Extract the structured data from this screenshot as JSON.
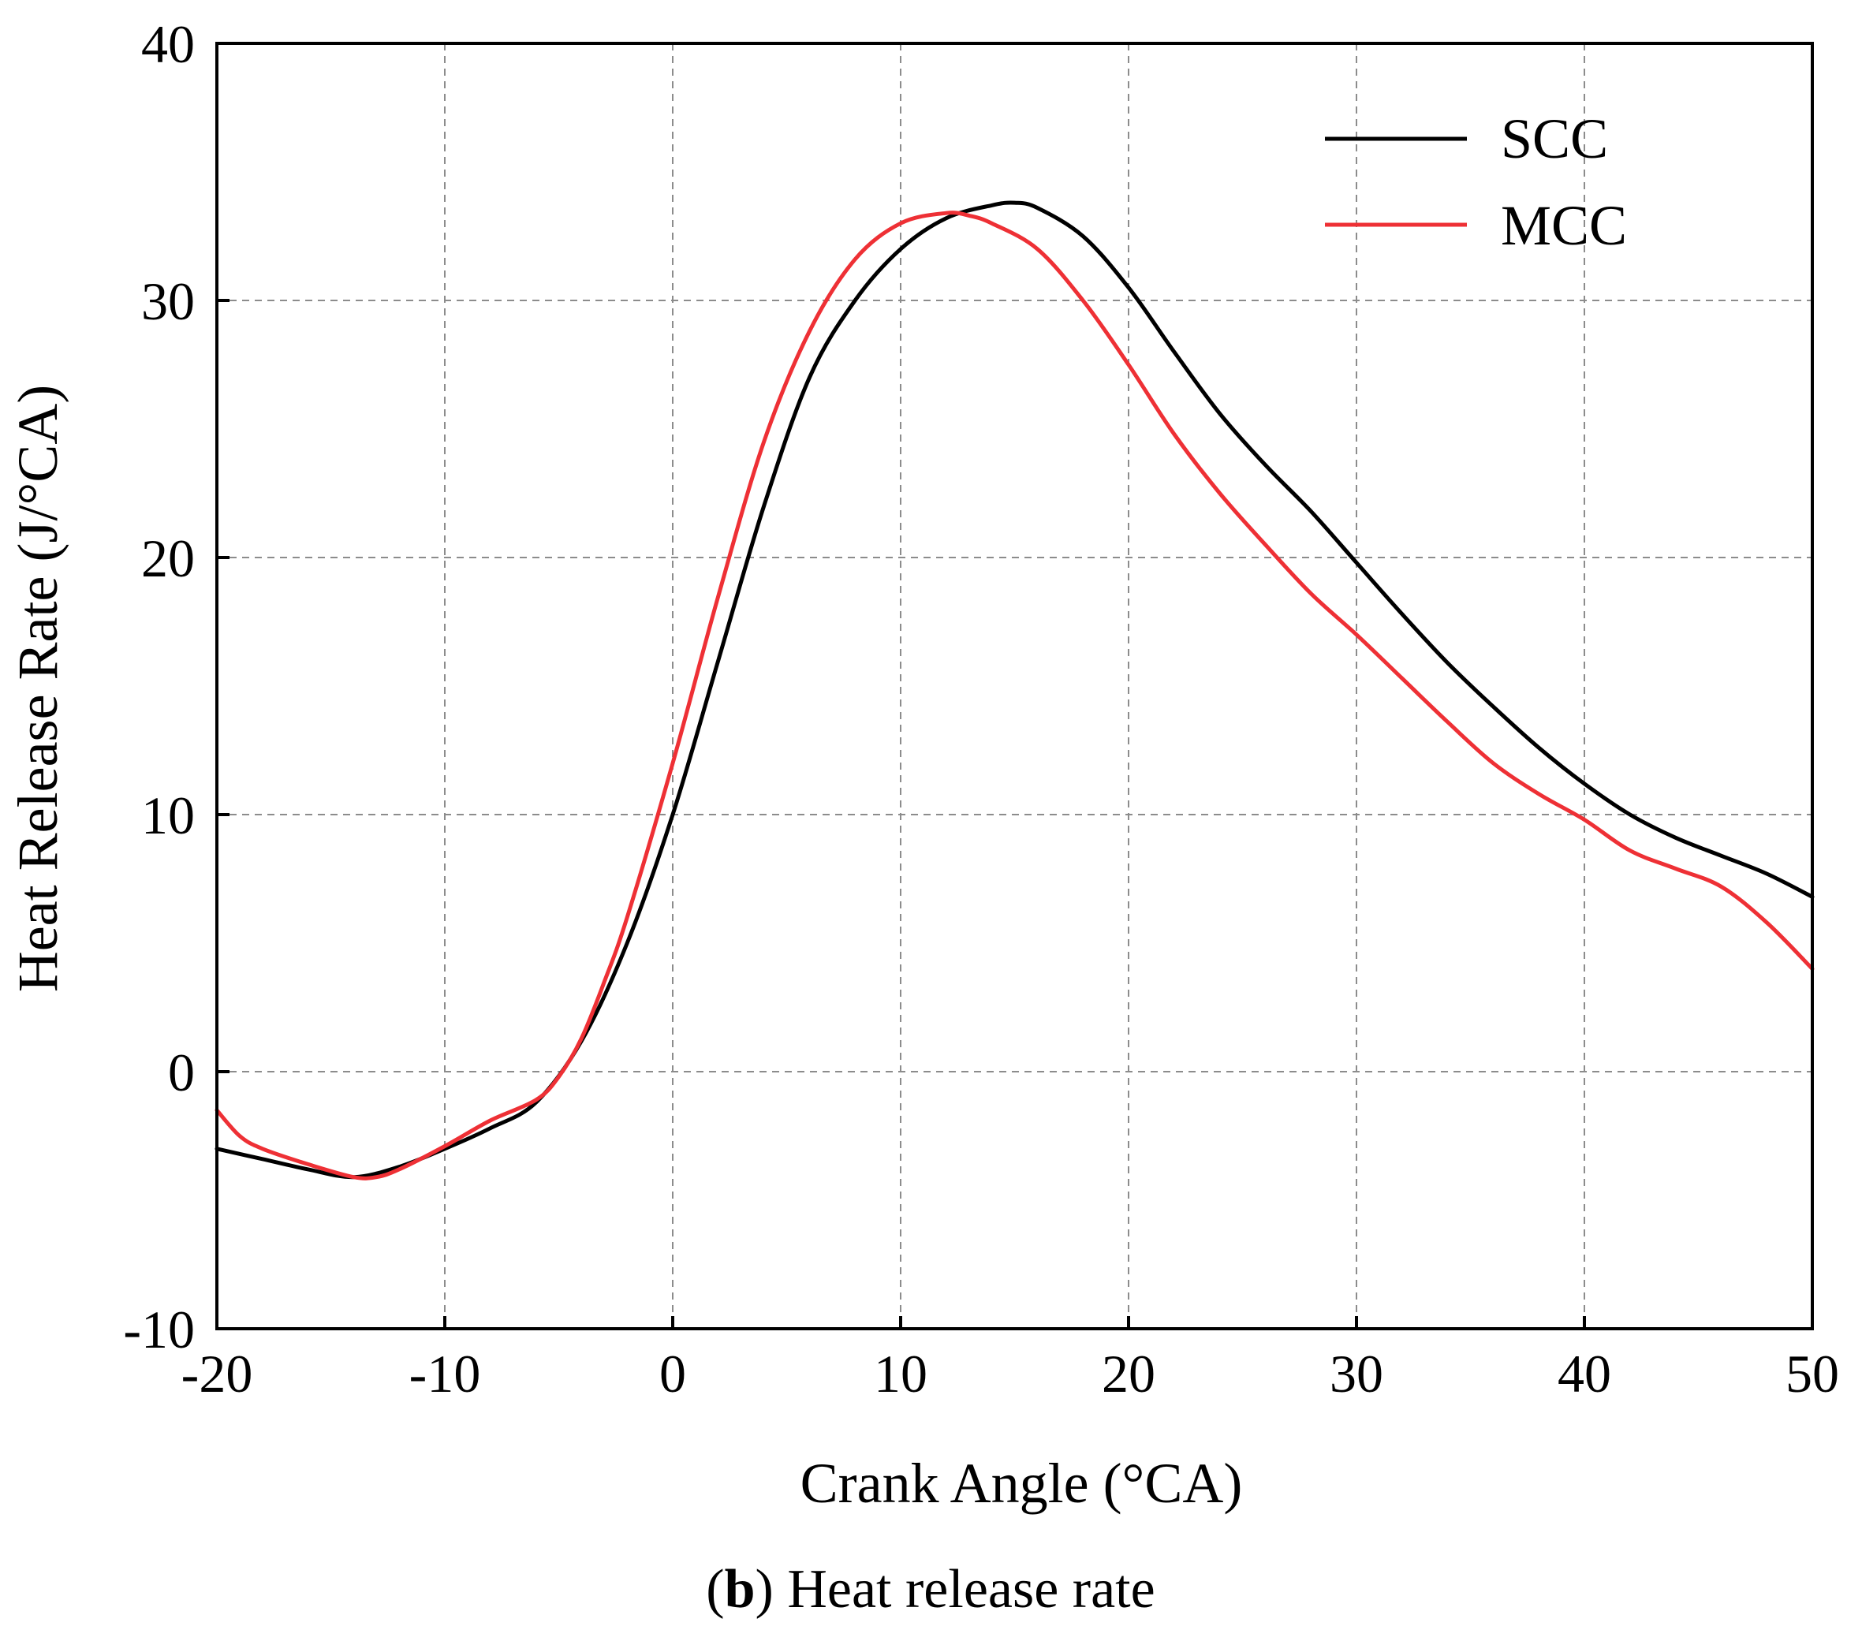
{
  "chart_data": {
    "type": "line",
    "title": "",
    "xlabel": "Crank Angle (°CA)",
    "ylabel": "Heat Release Rate (J/°CA)",
    "xlim": [
      -20,
      50
    ],
    "ylim": [
      -10,
      40
    ],
    "xticks": [
      -20,
      -10,
      0,
      10,
      20,
      30,
      40,
      50
    ],
    "yticks": [
      -10,
      0,
      10,
      20,
      30,
      40
    ],
    "xtick_labels": [
      "-20",
      "-10",
      "0",
      "10",
      "20",
      "30",
      "40",
      "50"
    ],
    "ytick_labels": [
      "-10",
      "0",
      "10",
      "20",
      "30",
      "40"
    ],
    "grid": true,
    "legend_position": "top-right",
    "series": [
      {
        "name": "SCC",
        "color": "#000000",
        "x": [
          -20,
          -18,
          -16,
          -14,
          -12,
          -10,
          -8,
          -6,
          -4,
          -2,
          0,
          2,
          4,
          6,
          8,
          10,
          12,
          14,
          15,
          16,
          18,
          20,
          22,
          24,
          26,
          28,
          30,
          32,
          34,
          36,
          38,
          40,
          42,
          44,
          46,
          48,
          50
        ],
        "values": [
          -3.0,
          -3.4,
          -3.8,
          -4.1,
          -3.7,
          -3.0,
          -2.2,
          -1.2,
          1.2,
          5.0,
          10.0,
          16.0,
          22.0,
          27.0,
          30.0,
          32.0,
          33.2,
          33.7,
          33.8,
          33.6,
          32.5,
          30.5,
          28.0,
          25.6,
          23.6,
          21.8,
          19.8,
          17.8,
          15.9,
          14.2,
          12.6,
          11.2,
          10.0,
          9.1,
          8.4,
          7.7,
          6.8
        ]
      },
      {
        "name": "MCC",
        "color": "#ee3035",
        "x": [
          -20,
          -19,
          -18,
          -16,
          -14,
          -13,
          -12,
          -10,
          -8,
          -6,
          -5,
          -4,
          -3,
          -2,
          0,
          2,
          4,
          6,
          8,
          10,
          12,
          13,
          14,
          16,
          18,
          20,
          22,
          24,
          26,
          28,
          30,
          32,
          34,
          36,
          38,
          40,
          42,
          44,
          46,
          48,
          50
        ],
        "values": [
          -1.5,
          -2.5,
          -3.0,
          -3.6,
          -4.1,
          -4.1,
          -3.8,
          -2.9,
          -1.9,
          -1.1,
          -0.2,
          1.3,
          3.5,
          6.0,
          12.0,
          18.5,
          24.5,
          28.8,
          31.6,
          33.0,
          33.4,
          33.3,
          33.0,
          32.0,
          30.0,
          27.5,
          24.8,
          22.5,
          20.5,
          18.6,
          17.0,
          15.3,
          13.6,
          12.0,
          10.8,
          9.8,
          8.6,
          7.9,
          7.2,
          5.8,
          4.0
        ]
      }
    ]
  },
  "caption": {
    "label": "b",
    "text": "Heat release rate"
  }
}
